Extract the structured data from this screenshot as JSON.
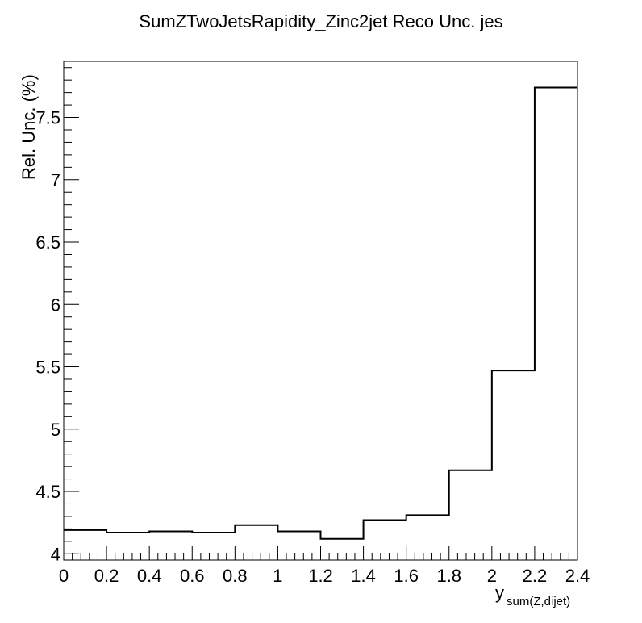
{
  "chart_data": {
    "type": "step",
    "title": "SumZTwoJetsRapidity_Zinc2jet Reco Unc. jes",
    "xlabel_main": "y",
    "xlabel_sub": "sum(Z,dijet)",
    "ylabel": "Rel. Unc. (%)",
    "xlim": [
      0,
      2.4
    ],
    "ylim": [
      3.95,
      7.95
    ],
    "x_ticks": [
      "0",
      "0.2",
      "0.4",
      "0.6",
      "0.8",
      "1",
      "1.2",
      "1.4",
      "1.6",
      "1.8",
      "2",
      "2.2",
      "2.4"
    ],
    "y_ticks": [
      "4",
      "4.5",
      "5",
      "5.5",
      "6",
      "6.5",
      "7",
      "7.5"
    ],
    "bin_edges": [
      0,
      0.2,
      0.4,
      0.6,
      0.8,
      1.0,
      1.2,
      1.4,
      1.6,
      1.8,
      2.0,
      2.2,
      2.4
    ],
    "values": [
      4.19,
      4.17,
      4.18,
      4.17,
      4.23,
      4.18,
      4.12,
      4.27,
      4.31,
      4.67,
      5.47,
      7.74
    ],
    "grid": false,
    "line_color": "#000000"
  }
}
